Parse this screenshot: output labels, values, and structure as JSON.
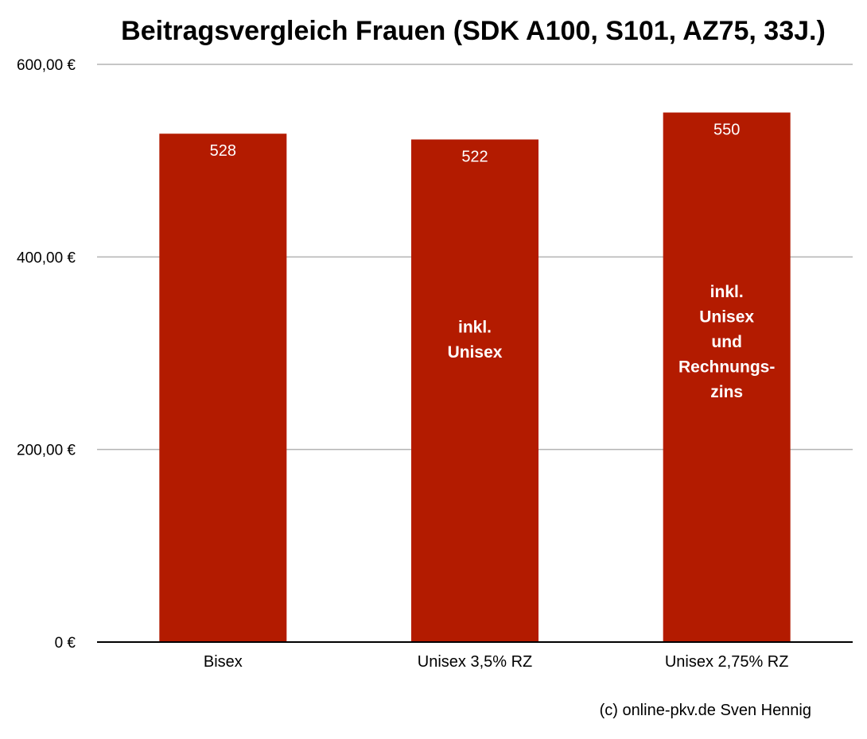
{
  "chart_data": {
    "type": "bar",
    "title": "Beitragsvergleich Frauen (SDK A100, S101, AZ75, 33J.)",
    "xlabel": "",
    "ylabel": "",
    "categories": [
      "Bisex",
      "Unisex 3,5% RZ",
      "Unisex 2,75% RZ"
    ],
    "values": [
      528,
      522,
      550
    ],
    "data_labels": [
      "528",
      "522",
      "550"
    ],
    "ylim": [
      0,
      600
    ],
    "yticks": [
      {
        "value": 0,
        "label": "0 €"
      },
      {
        "value": 200,
        "label": "200,00 €"
      },
      {
        "value": 400,
        "label": "400,00 €"
      },
      {
        "value": 600,
        "label": "600,00 €"
      }
    ],
    "grid": true,
    "legend": "none",
    "bar_color": "#B31B00",
    "annotations": [
      {
        "category": "Bisex",
        "lines": []
      },
      {
        "category": "Unisex 3,5% RZ",
        "lines": [
          "inkl.",
          "Unisex"
        ]
      },
      {
        "category": "Unisex 2,75% RZ",
        "lines": [
          "inkl.",
          "Unisex",
          "und",
          "Rechnungs-",
          "zins"
        ]
      }
    ]
  },
  "footer": {
    "credit": "(c) online-pkv.de Sven Hennig"
  }
}
